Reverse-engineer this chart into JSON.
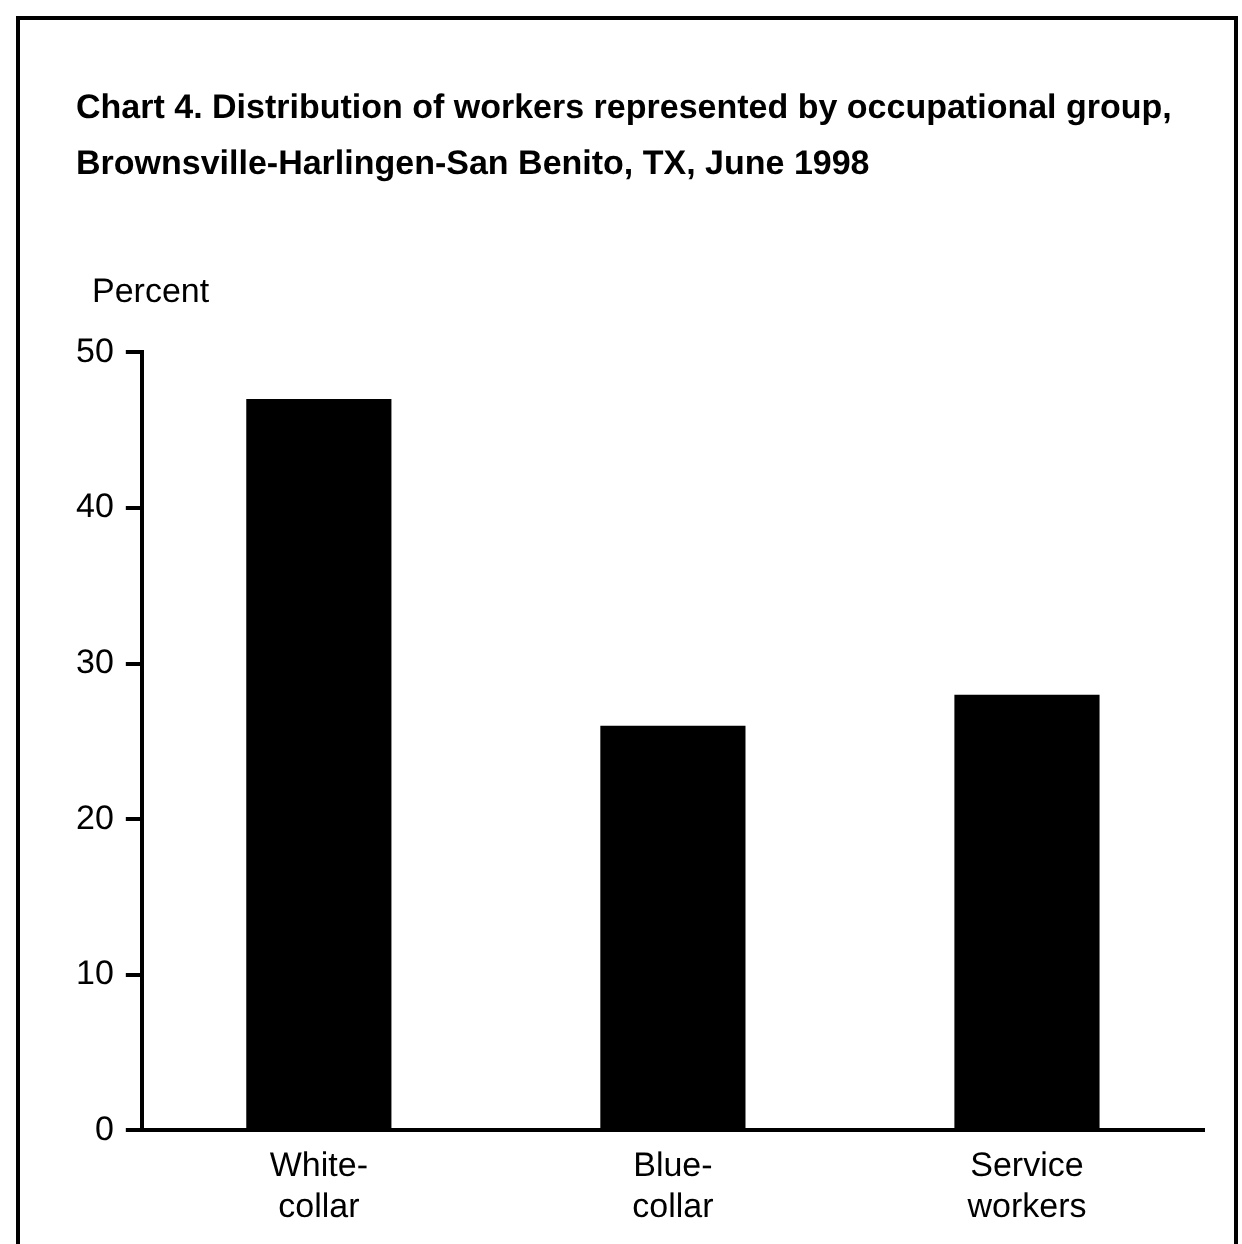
{
  "chart_data": {
    "type": "bar",
    "title": "Chart 4. Distribution of workers represented by occupational group, Brownsville-Harlingen-San Benito, TX, June 1998",
    "ylabel": "Percent",
    "categories": [
      "White-collar",
      "Blue-collar",
      "Service workers"
    ],
    "values": [
      47,
      26,
      28
    ],
    "color": "#000000",
    "ylim": [
      0,
      50
    ],
    "yticks": [
      0,
      10,
      20,
      30,
      40,
      50
    ],
    "grid": false,
    "legend": false
  }
}
